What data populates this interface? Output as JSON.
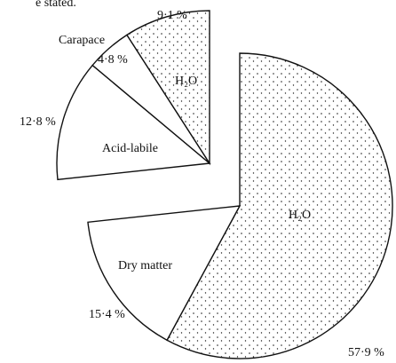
{
  "page_text": "e stated.",
  "chart_data": {
    "type": "pie",
    "categories": [
      "H₂O",
      "Dry matter",
      "Acid-labile",
      "Carapace",
      "H₂O"
    ],
    "values": [
      57.9,
      15.4,
      12.8,
      4.8,
      9.1
    ],
    "value_labels": [
      "57·9 %",
      "15·4 %",
      "12·8 %",
      "4·8 %",
      "9·1 %"
    ],
    "fills": [
      "dotted",
      "plain",
      "plain",
      "plain",
      "dotted"
    ]
  }
}
